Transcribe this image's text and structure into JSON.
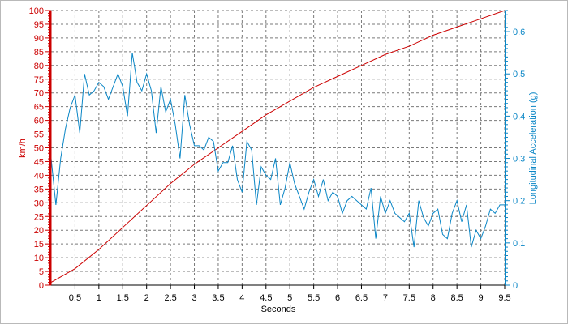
{
  "chart_data": {
    "type": "line",
    "x": {
      "label": "Seconds",
      "range": [
        0,
        9.5
      ],
      "ticks": [
        "0.5",
        "1",
        "1.5",
        "2",
        "2.5",
        "3",
        "3.5",
        "4",
        "4.5",
        "5",
        "5.5",
        "6",
        "6.5",
        "7",
        "7.5",
        "8",
        "8.5",
        "9",
        "9.5"
      ]
    },
    "y_left": {
      "label": "km/h",
      "range": [
        0,
        100
      ],
      "ticks": [
        "0",
        "5",
        "10",
        "15",
        "20",
        "25",
        "30",
        "35",
        "40",
        "45",
        "50",
        "55",
        "60",
        "65",
        "70",
        "75",
        "80",
        "85",
        "90",
        "95",
        "100"
      ],
      "color": "#cc0000"
    },
    "y_right": {
      "label": "Longitudinal Acceleration (g)",
      "range": [
        0,
        0.65
      ],
      "ticks": [
        "0",
        "0.1",
        "0.2",
        "0.3",
        "0.4",
        "0.5",
        "0.6"
      ],
      "color": "#0a86c6"
    },
    "grid": true,
    "series": [
      {
        "axis": "left",
        "color": "#cc0000",
        "x": [
          0,
          0.5,
          1,
          1.5,
          2,
          2.5,
          3,
          3.5,
          4,
          4.5,
          5,
          5.5,
          6,
          6.5,
          7,
          7.5,
          8,
          8.5,
          9,
          9.5
        ],
        "values": [
          1,
          6,
          13,
          21,
          29,
          37,
          44,
          50,
          56,
          62,
          67,
          72,
          76,
          80,
          84,
          87,
          91,
          94,
          97,
          100
        ]
      },
      {
        "axis": "right",
        "color": "#0a86c6",
        "x": [
          0.0,
          0.1,
          0.2,
          0.3,
          0.4,
          0.5,
          0.6,
          0.7,
          0.8,
          0.9,
          1.0,
          1.1,
          1.2,
          1.3,
          1.4,
          1.5,
          1.6,
          1.7,
          1.8,
          1.9,
          2.0,
          2.1,
          2.2,
          2.3,
          2.4,
          2.5,
          2.6,
          2.7,
          2.8,
          2.9,
          3.0,
          3.1,
          3.2,
          3.3,
          3.4,
          3.5,
          3.6,
          3.7,
          3.8,
          3.9,
          4.0,
          4.1,
          4.2,
          4.3,
          4.4,
          4.5,
          4.6,
          4.7,
          4.8,
          4.9,
          5.0,
          5.1,
          5.2,
          5.3,
          5.4,
          5.5,
          5.6,
          5.7,
          5.8,
          5.9,
          6.0,
          6.1,
          6.2,
          6.3,
          6.4,
          6.5,
          6.6,
          6.7,
          6.8,
          6.9,
          7.0,
          7.1,
          7.2,
          7.3,
          7.4,
          7.5,
          7.6,
          7.7,
          7.8,
          7.9,
          8.0,
          8.1,
          8.2,
          8.3,
          8.4,
          8.5,
          8.6,
          8.7,
          8.8,
          8.9,
          9.0,
          9.1,
          9.2,
          9.3,
          9.4,
          9.5
        ],
        "values": [
          0.3,
          0.19,
          0.3,
          0.37,
          0.42,
          0.45,
          0.36,
          0.5,
          0.45,
          0.46,
          0.48,
          0.47,
          0.44,
          0.47,
          0.5,
          0.47,
          0.4,
          0.55,
          0.48,
          0.46,
          0.5,
          0.46,
          0.36,
          0.47,
          0.41,
          0.44,
          0.38,
          0.3,
          0.45,
          0.38,
          0.33,
          0.33,
          0.32,
          0.35,
          0.34,
          0.27,
          0.29,
          0.29,
          0.33,
          0.25,
          0.22,
          0.34,
          0.32,
          0.19,
          0.28,
          0.26,
          0.25,
          0.3,
          0.19,
          0.23,
          0.29,
          0.24,
          0.21,
          0.18,
          0.22,
          0.25,
          0.21,
          0.25,
          0.2,
          0.22,
          0.21,
          0.17,
          0.2,
          0.21,
          0.2,
          0.19,
          0.18,
          0.23,
          0.11,
          0.21,
          0.17,
          0.2,
          0.17,
          0.16,
          0.15,
          0.17,
          0.09,
          0.2,
          0.16,
          0.14,
          0.17,
          0.18,
          0.12,
          0.11,
          0.17,
          0.2,
          0.15,
          0.19,
          0.09,
          0.13,
          0.11,
          0.14,
          0.18,
          0.17,
          0.19,
          0.19
        ]
      }
    ]
  }
}
